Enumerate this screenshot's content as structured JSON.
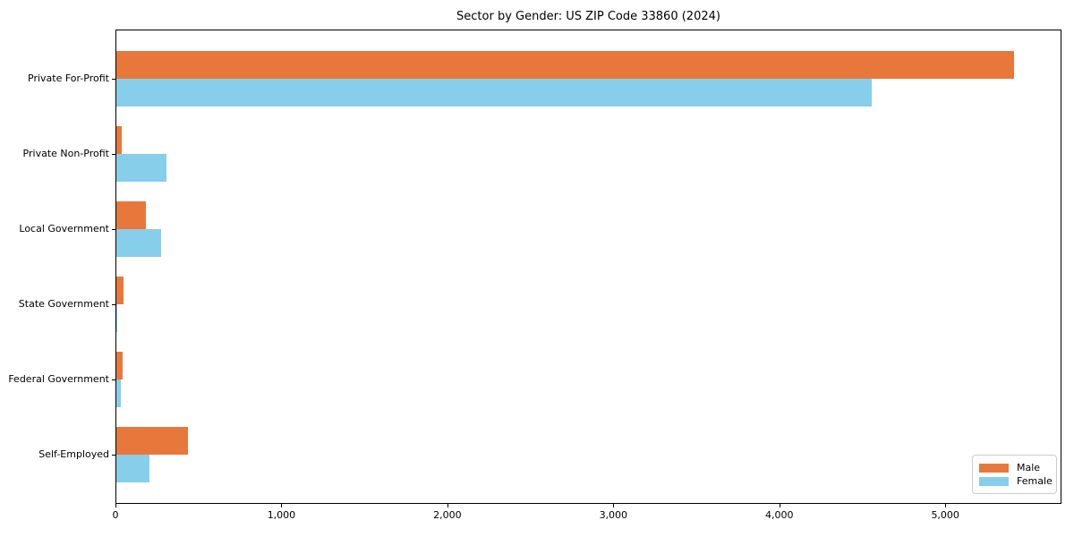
{
  "chart_data": {
    "type": "bar",
    "orientation": "horizontal",
    "title": "Sector by Gender: US ZIP Code 33860 (2024)",
    "categories": [
      "Private For-Profit",
      "Private Non-Profit",
      "Local Government",
      "State Government",
      "Federal Government",
      "Self-Employed"
    ],
    "series": [
      {
        "name": "Male",
        "color": "#e8773c",
        "values": [
          5410,
          35,
          180,
          45,
          40,
          430
        ]
      },
      {
        "name": "Female",
        "color": "#87ceeb",
        "values": [
          4550,
          300,
          270,
          5,
          25,
          200
        ]
      }
    ],
    "xlabel": "",
    "ylabel": "",
    "xlim": [
      0,
      5700
    ],
    "x_ticks": [
      0,
      1000,
      2000,
      3000,
      4000,
      5000
    ],
    "x_tick_labels": [
      "0",
      "1,000",
      "2,000",
      "3,000",
      "4,000",
      "5,000"
    ],
    "grid": false,
    "legend_position": "lower right"
  },
  "legend": {
    "items": [
      {
        "label": "Male"
      },
      {
        "label": "Female"
      }
    ]
  }
}
